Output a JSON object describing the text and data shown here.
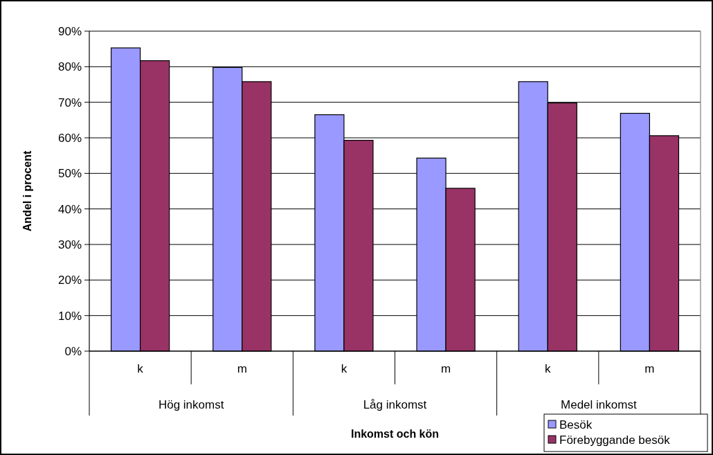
{
  "chart_data": {
    "type": "bar",
    "categories": [
      "k",
      "m",
      "k",
      "m",
      "k",
      "m"
    ],
    "series": [
      {
        "name": "Besök",
        "color": "#9999ff",
        "values": [
          85.3,
          79.8,
          66.5,
          54.3,
          75.8,
          66.9
        ]
      },
      {
        "name": "Förebyggande besök",
        "color": "#993366",
        "values": [
          81.7,
          75.8,
          59.3,
          45.8,
          69.8,
          60.6
        ]
      }
    ],
    "ylim": [
      0,
      90
    ],
    "yticks": [
      {
        "value": 0,
        "label": "0%"
      },
      {
        "value": 10,
        "label": "10%"
      },
      {
        "value": 20,
        "label": "20%"
      },
      {
        "value": 30,
        "label": "30%"
      },
      {
        "value": 40,
        "label": "40%"
      },
      {
        "value": 50,
        "label": "50%"
      },
      {
        "value": 60,
        "label": "60%"
      },
      {
        "value": 70,
        "label": "70%"
      },
      {
        "value": 80,
        "label": "80%"
      },
      {
        "value": 90,
        "label": "90%"
      }
    ],
    "ylabel": "Andel i procent",
    "xlabel": "Inkomst och kön",
    "annotations": [
      "Hög inkomst",
      "Låg inkomst",
      "Medel inkomst"
    ],
    "grid": "y",
    "legend": "bottom right"
  }
}
